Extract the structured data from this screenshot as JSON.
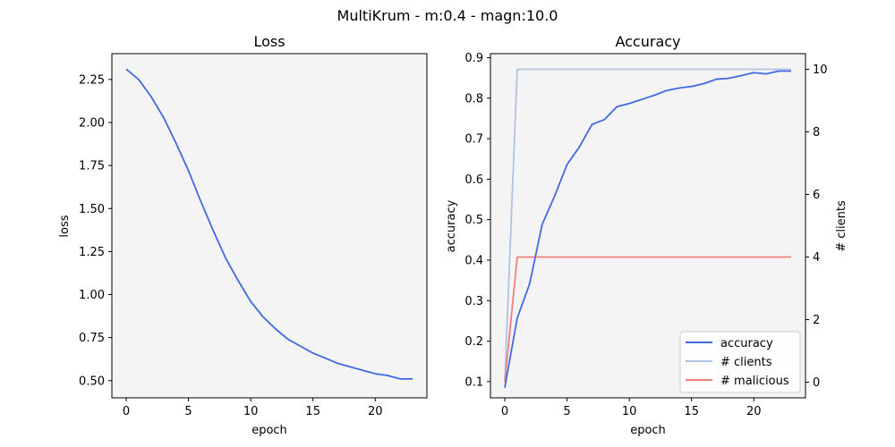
{
  "suptitle": "MultiKrum - m:0.4 - magn:10.0",
  "colors": {
    "accuracy": "#4169e1",
    "clients": "#b0c4de",
    "malicious": "#f08080",
    "panel_bg": "#f4f4f4"
  },
  "chart_data": [
    {
      "type": "line",
      "title": "Loss",
      "xlabel": "epoch",
      "ylabel": "loss",
      "xlim": [
        -1.15,
        24.15
      ],
      "ylim": [
        0.4,
        2.4
      ],
      "xticks": [
        0,
        5,
        10,
        15,
        20
      ],
      "yticks": [
        0.5,
        0.75,
        1.0,
        1.25,
        1.5,
        1.75,
        2.0,
        2.25
      ],
      "ytick_labels": [
        "0.50",
        "0.75",
        "1.00",
        "1.25",
        "1.50",
        "1.75",
        "2.00",
        "2.25"
      ],
      "grid": false,
      "series": [
        {
          "color": "#4169e1",
          "x": [
            0,
            1,
            2,
            3,
            4,
            5,
            6,
            7,
            8,
            9,
            10,
            11,
            12,
            13,
            14,
            15,
            16,
            17,
            18,
            19,
            20,
            21,
            22,
            23
          ],
          "values": [
            2.31,
            2.25,
            2.15,
            2.03,
            1.88,
            1.72,
            1.54,
            1.37,
            1.21,
            1.08,
            0.96,
            0.87,
            0.8,
            0.74,
            0.7,
            0.66,
            0.63,
            0.6,
            0.58,
            0.56,
            0.54,
            0.53,
            0.51,
            0.51
          ]
        }
      ]
    },
    {
      "type": "line",
      "title": "Accuracy",
      "xlabel": "epoch",
      "ylabel": "accuracy",
      "ylabel_right": "# clients",
      "xlim": [
        -1.15,
        24.15
      ],
      "ylim": [
        0.06,
        0.91
      ],
      "ylim_right": [
        -0.5,
        10.5
      ],
      "xticks": [
        0,
        5,
        10,
        15,
        20
      ],
      "yticks": [
        0.1,
        0.2,
        0.3,
        0.4,
        0.5,
        0.6,
        0.7,
        0.8,
        0.9
      ],
      "ytick_labels": [
        "0.1",
        "0.2",
        "0.3",
        "0.4",
        "0.5",
        "0.6",
        "0.7",
        "0.8",
        "0.9"
      ],
      "yticks_right": [
        0,
        2,
        4,
        6,
        8,
        10
      ],
      "grid": false,
      "legend_position": "lower-right",
      "series": [
        {
          "name": "accuracy",
          "axis": "left",
          "color": "#4169e1",
          "x": [
            0,
            1,
            2,
            3,
            4,
            5,
            6,
            7,
            8,
            9,
            10,
            11,
            12,
            13,
            14,
            15,
            16,
            17,
            18,
            19,
            20,
            21,
            22,
            23
          ],
          "values": [
            0.085,
            0.257,
            0.342,
            0.488,
            0.558,
            0.636,
            0.68,
            0.735,
            0.747,
            0.779,
            0.787,
            0.797,
            0.807,
            0.819,
            0.825,
            0.829,
            0.836,
            0.847,
            0.849,
            0.856,
            0.863,
            0.86,
            0.867,
            0.867
          ]
        },
        {
          "name": "# clients",
          "axis": "right",
          "color": "#b0c4de",
          "x": [
            0,
            1,
            2,
            3,
            4,
            5,
            6,
            7,
            8,
            9,
            10,
            11,
            12,
            13,
            14,
            15,
            16,
            17,
            18,
            19,
            20,
            21,
            22,
            23
          ],
          "values": [
            0,
            10,
            10,
            10,
            10,
            10,
            10,
            10,
            10,
            10,
            10,
            10,
            10,
            10,
            10,
            10,
            10,
            10,
            10,
            10,
            10,
            10,
            10,
            10
          ]
        },
        {
          "name": "# malicious",
          "axis": "right",
          "color": "#f08080",
          "x": [
            0,
            1,
            2,
            3,
            4,
            5,
            6,
            7,
            8,
            9,
            10,
            11,
            12,
            13,
            14,
            15,
            16,
            17,
            18,
            19,
            20,
            21,
            22,
            23
          ],
          "values": [
            0,
            4,
            4,
            4,
            4,
            4,
            4,
            4,
            4,
            4,
            4,
            4,
            4,
            4,
            4,
            4,
            4,
            4,
            4,
            4,
            4,
            4,
            4,
            4
          ]
        }
      ]
    }
  ]
}
